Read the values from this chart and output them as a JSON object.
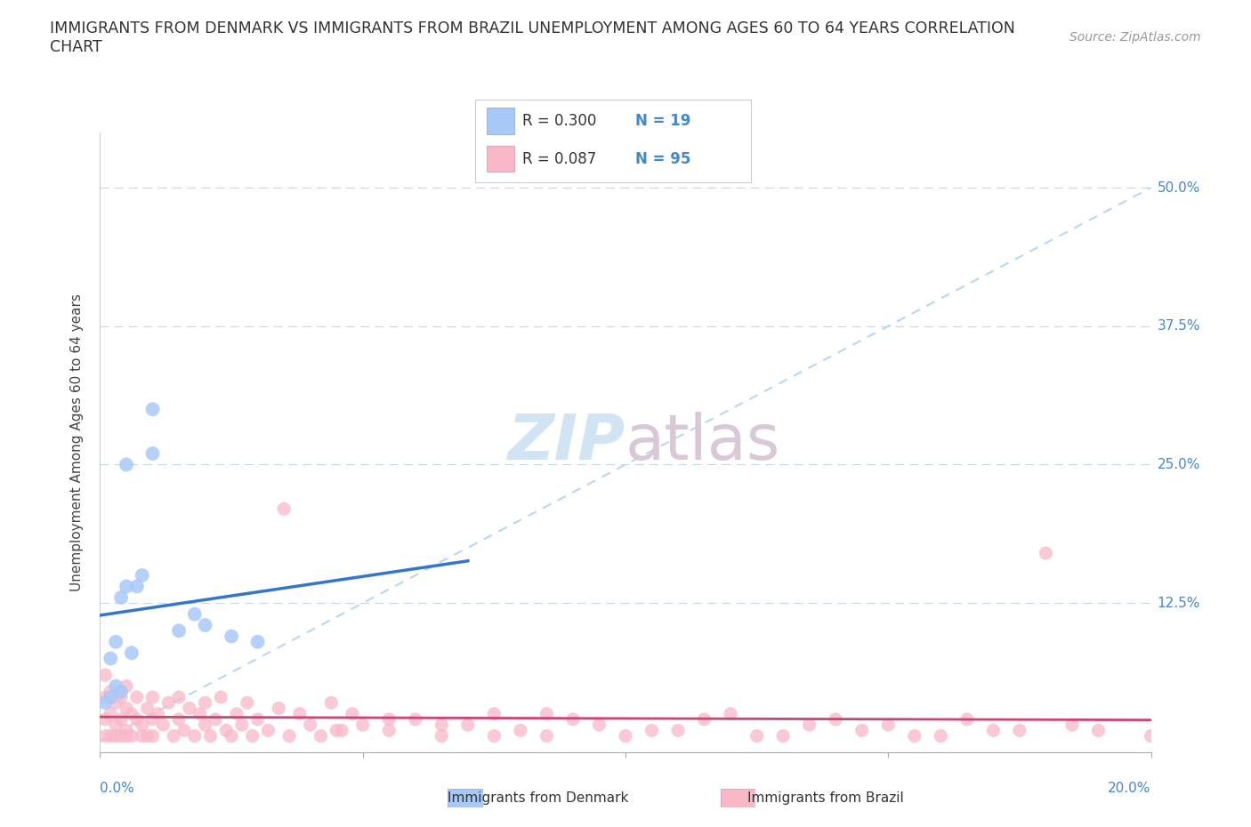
{
  "title_line1": "IMMIGRANTS FROM DENMARK VS IMMIGRANTS FROM BRAZIL UNEMPLOYMENT AMONG AGES 60 TO 64 YEARS CORRELATION",
  "title_line2": "CHART",
  "source": "Source: ZipAtlas.com",
  "ylabel": "Unemployment Among Ages 60 to 64 years",
  "ytick_positions": [
    0.0,
    0.125,
    0.25,
    0.375,
    0.5
  ],
  "ytick_labels": [
    "",
    "12.5%",
    "25.0%",
    "37.5%",
    "50.0%"
  ],
  "xlim": [
    0.0,
    0.2
  ],
  "ylim": [
    -0.01,
    0.55
  ],
  "color_denmark": "#a8c8f8",
  "color_brazil": "#f8b8c8",
  "trendline_color_denmark": "#3377cc",
  "trendline_color_brazil": "#cc4477",
  "diagonal_color": "#b8d8ee",
  "watermark_zip": "ZIP",
  "watermark_atlas": "atlas",
  "denmark_x": [
    0.001,
    0.002,
    0.002,
    0.003,
    0.003,
    0.004,
    0.004,
    0.005,
    0.006,
    0.007,
    0.008,
    0.01,
    0.015,
    0.018,
    0.02,
    0.025,
    0.03,
    0.01,
    0.005
  ],
  "denmark_y": [
    0.035,
    0.04,
    0.075,
    0.05,
    0.09,
    0.045,
    0.13,
    0.14,
    0.08,
    0.14,
    0.15,
    0.26,
    0.1,
    0.115,
    0.105,
    0.095,
    0.09,
    0.3,
    0.25
  ],
  "brazil_x": [
    0.001,
    0.001,
    0.001,
    0.001,
    0.002,
    0.002,
    0.002,
    0.003,
    0.003,
    0.003,
    0.004,
    0.004,
    0.004,
    0.005,
    0.005,
    0.005,
    0.005,
    0.006,
    0.006,
    0.007,
    0.007,
    0.008,
    0.008,
    0.009,
    0.009,
    0.01,
    0.01,
    0.01,
    0.011,
    0.012,
    0.013,
    0.014,
    0.015,
    0.015,
    0.016,
    0.017,
    0.018,
    0.019,
    0.02,
    0.02,
    0.021,
    0.022,
    0.023,
    0.024,
    0.025,
    0.026,
    0.027,
    0.028,
    0.029,
    0.03,
    0.032,
    0.034,
    0.036,
    0.038,
    0.04,
    0.042,
    0.044,
    0.046,
    0.048,
    0.05,
    0.055,
    0.06,
    0.065,
    0.07,
    0.075,
    0.08,
    0.085,
    0.09,
    0.095,
    0.1,
    0.11,
    0.12,
    0.13,
    0.14,
    0.15,
    0.16,
    0.17,
    0.18,
    0.19,
    0.2,
    0.035,
    0.045,
    0.055,
    0.065,
    0.075,
    0.085,
    0.105,
    0.115,
    0.125,
    0.135,
    0.145,
    0.155,
    0.165,
    0.175,
    0.185
  ],
  "brazil_y": [
    0.02,
    0.04,
    0.06,
    0.005,
    0.025,
    0.045,
    0.005,
    0.015,
    0.035,
    0.005,
    0.02,
    0.04,
    0.005,
    0.01,
    0.03,
    0.05,
    0.005,
    0.025,
    0.005,
    0.02,
    0.04,
    0.015,
    0.005,
    0.03,
    0.005,
    0.02,
    0.04,
    0.005,
    0.025,
    0.015,
    0.035,
    0.005,
    0.02,
    0.04,
    0.01,
    0.03,
    0.005,
    0.025,
    0.015,
    0.035,
    0.005,
    0.02,
    0.04,
    0.01,
    0.005,
    0.025,
    0.015,
    0.035,
    0.005,
    0.02,
    0.01,
    0.03,
    0.005,
    0.025,
    0.015,
    0.005,
    0.035,
    0.01,
    0.025,
    0.015,
    0.01,
    0.02,
    0.005,
    0.015,
    0.025,
    0.01,
    0.005,
    0.02,
    0.015,
    0.005,
    0.01,
    0.025,
    0.005,
    0.02,
    0.015,
    0.005,
    0.01,
    0.17,
    0.01,
    0.005,
    0.21,
    0.01,
    0.02,
    0.015,
    0.005,
    0.025,
    0.01,
    0.02,
    0.005,
    0.015,
    0.01,
    0.005,
    0.02,
    0.01,
    0.015
  ]
}
